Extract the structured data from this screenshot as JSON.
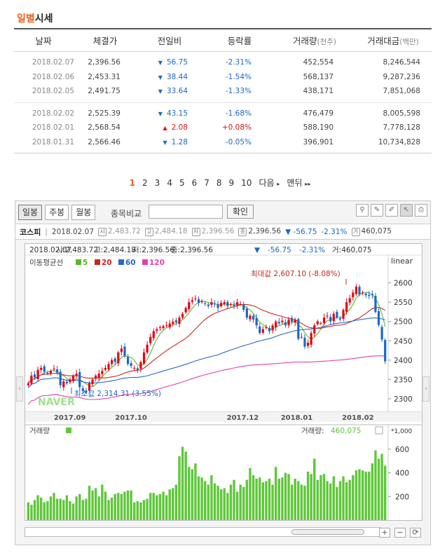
{
  "page_title_accent": "일별",
  "page_title_rest": "시세",
  "table": {
    "headers": {
      "date": "날짜",
      "close": "체결가",
      "change": "전일비",
      "rate": "등락률",
      "volume": "거래량",
      "volume_unit": "(천주)",
      "amount": "거래대금",
      "amount_unit": "(백만)"
    },
    "groups": [
      [
        {
          "date": "2018.02.07",
          "close": "2,396.56",
          "dir": "down",
          "change": "56.75",
          "rate": "-2.31%",
          "volume": "452,554",
          "amount": "8,246,544"
        },
        {
          "date": "2018.02.06",
          "close": "2,453.31",
          "dir": "down",
          "change": "38.44",
          "rate": "-1.54%",
          "volume": "568,137",
          "amount": "9,287,236"
        },
        {
          "date": "2018.02.05",
          "close": "2,491.75",
          "dir": "down",
          "change": "33.64",
          "rate": "-1.33%",
          "volume": "438,171",
          "amount": "7,851,068"
        }
      ],
      [
        {
          "date": "2018.02.02",
          "close": "2,525.39",
          "dir": "down",
          "change": "43.15",
          "rate": "-1.68%",
          "volume": "476,479",
          "amount": "8,005,598"
        },
        {
          "date": "2018.02.01",
          "close": "2,568.54",
          "dir": "up",
          "change": "2.08",
          "rate": "+0.08%",
          "volume": "588,190",
          "amount": "7,778,128"
        },
        {
          "date": "2018.01.31",
          "close": "2,566.46",
          "dir": "down",
          "change": "1.28",
          "rate": "-0.05%",
          "volume": "396,901",
          "amount": "10,734,828"
        }
      ]
    ]
  },
  "pager": {
    "pages": [
      "1",
      "2",
      "3",
      "4",
      "5",
      "6",
      "7",
      "8",
      "9",
      "10"
    ],
    "current": "1",
    "next": "다음",
    "last": "맨뒤"
  },
  "chart_ui": {
    "tabs": [
      "일봉",
      "주봉",
      "월봉"
    ],
    "active_tab": "일봉",
    "compare_label": "종목비교",
    "compare_placeholder": "",
    "confirm": "확인",
    "quote": {
      "name": "코스피",
      "date": "2018.02.07",
      "open": "2,483.72",
      "high": "2,484.18",
      "low": "2,396.56",
      "close": "2,396.56",
      "change": "▼ -56.75",
      "rate": "-2.31%",
      "volume": "460,075"
    },
    "info_line": {
      "date": "2018.02.07",
      "open": "시:2,483.72",
      "high": "고:2,484.18",
      "low": "저:2,396.56",
      "close": "종:2,396.56",
      "dir": "▼",
      "change": "-56.75",
      "rate": "-2.31%",
      "volume": "거:460,075"
    },
    "ma_label": "이동평균선",
    "ma": [
      {
        "label": "5",
        "color": "#5db52c"
      },
      {
        "label": "20",
        "color": "#c8281e"
      },
      {
        "label": "60",
        "color": "#2a67c9"
      },
      {
        "label": "120",
        "color": "#e040b0"
      }
    ],
    "scale": "linear",
    "max_label": "최대값 2,607.10 (-8.08%)",
    "min_label": "최소값 2,314.31 (3.55%)",
    "watermark": "NAVER",
    "volume_label": "거래량",
    "volume_value_label": "거래량:",
    "volume_value": "460,075",
    "volume_unit": "*1,000",
    "colors": {
      "up": "#e60012",
      "down": "#1c67c6",
      "volume": "#5fc73a",
      "accent": "#e8631f"
    }
  },
  "chart_data": {
    "type": "candlestick",
    "x_ticks": [
      "2017.09",
      "2017.10",
      "2017.12",
      "2018.01",
      "2018.02"
    ],
    "y_ticks": [
      2300,
      2350,
      2400,
      2450,
      2500,
      2550,
      2600
    ],
    "y_range": [
      2280,
      2650
    ],
    "volume_ticks": [
      200,
      400,
      600
    ],
    "volume_range": [
      0,
      700
    ],
    "closes": [
      2340,
      2360,
      2355,
      2375,
      2380,
      2370,
      2365,
      2372,
      2378,
      2368,
      2335,
      2345,
      2340,
      2350,
      2360,
      2365,
      2330,
      2320,
      2316,
      2340,
      2350,
      2360,
      2365,
      2372,
      2380,
      2390,
      2400,
      2395,
      2420,
      2430,
      2410,
      2390,
      2385,
      2380,
      2375,
      2395,
      2420,
      2440,
      2460,
      2475,
      2480,
      2485,
      2488,
      2490,
      2495,
      2500,
      2498,
      2510,
      2520,
      2535,
      2550,
      2555,
      2560,
      2548,
      2552,
      2545,
      2540,
      2550,
      2545,
      2535,
      2548,
      2550,
      2540,
      2545,
      2540,
      2550,
      2545,
      2530,
      2510,
      2515,
      2505,
      2490,
      2470,
      2480,
      2485,
      2475,
      2490,
      2500,
      2495,
      2502,
      2490,
      2505,
      2500,
      2505,
      2455,
      2460,
      2435,
      2445,
      2470,
      2490,
      2500,
      2496,
      2510,
      2515,
      2500,
      2520,
      2510,
      2505,
      2530,
      2550,
      2560,
      2575,
      2590,
      2570,
      2575,
      2568,
      2566,
      2568,
      2525,
      2491,
      2453,
      2397
    ],
    "volume": [
      150,
      130,
      170,
      210,
      190,
      150,
      160,
      200,
      230,
      180,
      180,
      170,
      210,
      160,
      140,
      200,
      220,
      170,
      180,
      290,
      250,
      270,
      200,
      300,
      240,
      170,
      190,
      220,
      230,
      220,
      240,
      250,
      250,
      150,
      160,
      150,
      170,
      180,
      230,
      230,
      210,
      220,
      240,
      210,
      260,
      270,
      300,
      540,
      620,
      580,
      450,
      430,
      480,
      370,
      360,
      330,
      300,
      380,
      310,
      290,
      260,
      270,
      230,
      300,
      340,
      240,
      300,
      280,
      340,
      440,
      380,
      350,
      360,
      320,
      330,
      350,
      300,
      450,
      350,
      360,
      400,
      390,
      300,
      350,
      330,
      300,
      290,
      410,
      390,
      520,
      340,
      380,
      390,
      330,
      310,
      370,
      280,
      330,
      370,
      320,
      340,
      380,
      420,
      430,
      420,
      410,
      410,
      480,
      590,
      520,
      560,
      460
    ]
  }
}
